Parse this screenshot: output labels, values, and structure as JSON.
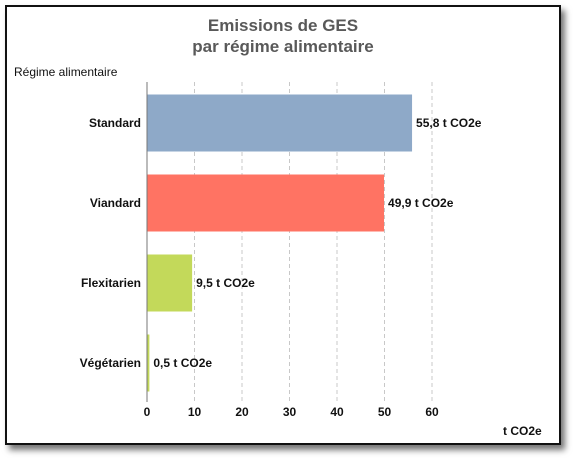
{
  "chart_data": {
    "type": "bar",
    "orientation": "horizontal",
    "title": [
      "Emissions de GES",
      "par régime alimentaire"
    ],
    "ylabel": "Régime alimentaire",
    "xlabel": "t CO2e",
    "categories": [
      "Standard",
      "Viandard",
      "Flexitarien",
      "Végétarien"
    ],
    "values": [
      55.8,
      49.9,
      9.5,
      0.5
    ],
    "data_labels": [
      "55,8 t CO2e",
      "49,9 t CO2e",
      "9,5 t CO2e",
      "0,5 t CO2e"
    ],
    "colors": [
      "#8EA9C8",
      "#FF7363",
      "#C3D95A",
      "#C3D95A"
    ],
    "xlim": [
      0,
      60
    ],
    "xticks": [
      0,
      10,
      20,
      30,
      40,
      50,
      60
    ],
    "grid": "vertical dashed",
    "legend": "none"
  }
}
